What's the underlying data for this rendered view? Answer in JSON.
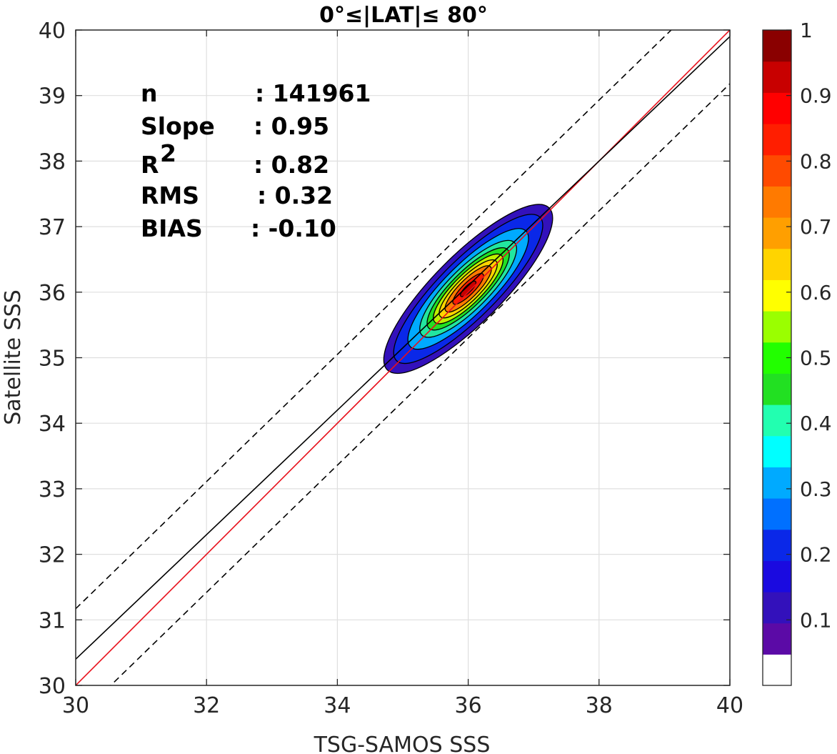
{
  "chart_data": {
    "type": "contour density scatter",
    "title": "0°≤|LAT|≤ 80°",
    "xlabel": "TSG-SAMOS SSS",
    "ylabel": "Satellite SSS",
    "xlim": [
      30,
      40
    ],
    "ylim": [
      30,
      40
    ],
    "xticks": [
      30,
      32,
      34,
      36,
      38,
      40
    ],
    "yticks": [
      30,
      31,
      32,
      33,
      34,
      35,
      36,
      37,
      38,
      39,
      40
    ],
    "grid": true,
    "stats": [
      {
        "label": "n",
        "sep": ": ",
        "value": "141961"
      },
      {
        "label": "Slope",
        "sep": ": ",
        "value": "0.95"
      },
      {
        "label": "R",
        "sup": "2",
        "sep": ": ",
        "value": "0.82"
      },
      {
        "label": "RMS",
        "sep": ": ",
        "value": "0.32"
      },
      {
        "label": "BIAS",
        "sep": ": ",
        "value": "-0.10"
      }
    ],
    "lines": [
      {
        "name": "one-to-one",
        "color": "#e8101b",
        "style": "solid",
        "slope": 1.0,
        "intercept": 0.0
      },
      {
        "name": "regression",
        "color": "#000000",
        "style": "solid",
        "slope": 0.95,
        "intercept": 1.9
      },
      {
        "name": "upper-bound",
        "color": "#000000",
        "style": "dashed",
        "slope": 0.97,
        "intercept": 2.07
      },
      {
        "name": "lower-bound",
        "color": "#000000",
        "style": "dashed",
        "slope": 0.97,
        "intercept": 0.38
      }
    ],
    "density_contours": {
      "center": [
        36.0,
        36.05
      ],
      "major_axis_angle_deg": 45,
      "levels": [
        {
          "level": 0.05,
          "color": "#3311bb",
          "half_length": 1.75,
          "half_width": 0.52
        },
        {
          "level": 0.15,
          "color": "#0a28e8",
          "half_length": 1.55,
          "half_width": 0.44
        },
        {
          "level": 0.25,
          "color": "#00aaff",
          "half_length": 1.25,
          "half_width": 0.37
        },
        {
          "level": 0.35,
          "color": "#22e6a0",
          "half_length": 1.0,
          "half_width": 0.31
        },
        {
          "level": 0.45,
          "color": "#22e022",
          "half_length": 0.85,
          "half_width": 0.26
        },
        {
          "level": 0.55,
          "color": "#bff000",
          "half_length": 0.72,
          "half_width": 0.22
        },
        {
          "level": 0.65,
          "color": "#ffd400",
          "half_length": 0.6,
          "half_width": 0.18
        },
        {
          "level": 0.75,
          "color": "#ff7a00",
          "half_length": 0.48,
          "half_width": 0.14
        },
        {
          "level": 0.85,
          "color": "#ff1e00",
          "half_length": 0.32,
          "half_width": 0.09
        },
        {
          "level": 0.95,
          "color": "#c80000",
          "half_length": 0.16,
          "half_width": 0.05
        }
      ]
    },
    "colorbar": {
      "range": [
        0,
        1
      ],
      "ticks": [
        "0.1",
        "0.2",
        "0.3",
        "0.4",
        "0.5",
        "0.6",
        "0.7",
        "0.8",
        "0.9",
        "1"
      ],
      "colors": [
        "#ffffff",
        "#5b0aa6",
        "#3311bb",
        "#1a0ae0",
        "#0a28e8",
        "#0070ff",
        "#00aaff",
        "#00ffff",
        "#22ffb0",
        "#22e022",
        "#22ff00",
        "#9aff00",
        "#ffff00",
        "#ffd400",
        "#ff9f00",
        "#ff7a00",
        "#ff4a00",
        "#ff1e00",
        "#ff0000",
        "#c80000",
        "#8a0000"
      ]
    }
  }
}
